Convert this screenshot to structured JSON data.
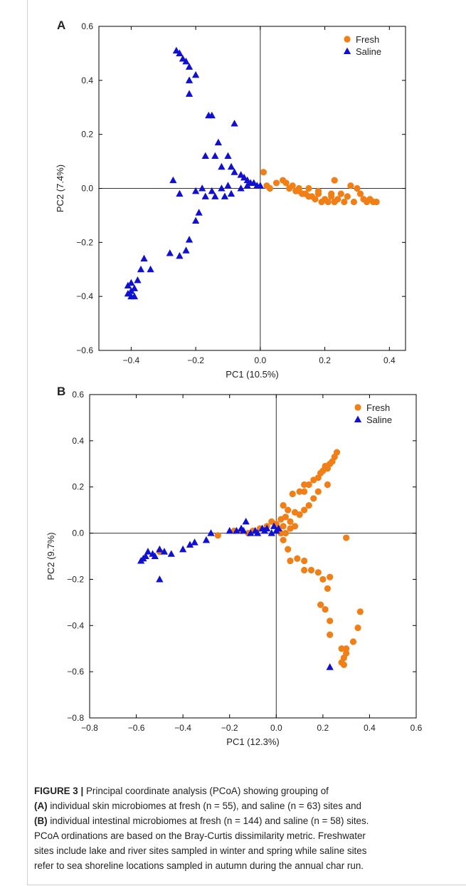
{
  "chart_data": [
    {
      "type": "scatter",
      "panel": "A",
      "xlabel": "PC1 (10.5%)",
      "ylabel": "PC2 (7.4%)",
      "xlim": [
        -0.5,
        0.45
      ],
      "ylim": [
        -0.6,
        0.6
      ],
      "xticks": [
        -0.4,
        -0.2,
        0.0,
        0.2,
        0.4
      ],
      "xtick_labels": [
        "−0.4",
        "−0.2",
        "0.0",
        "0.2",
        "0.4"
      ],
      "yticks": [
        -0.6,
        -0.4,
        -0.2,
        0.0,
        0.2,
        0.4,
        0.6
      ],
      "ytick_labels": [
        "−0.6",
        "−0.4",
        "−0.2",
        "0.0",
        "0.2",
        "0.4",
        "0.6"
      ],
      "legend_position": "top-right",
      "series": [
        {
          "name": "Fresh",
          "marker": "circle",
          "color": "#f07f17",
          "points": [
            [
              0.01,
              0.06
            ],
            [
              0.02,
              0.01
            ],
            [
              0.03,
              0.0
            ],
            [
              0.05,
              0.02
            ],
            [
              0.07,
              0.03
            ],
            [
              0.08,
              0.02
            ],
            [
              0.09,
              0.0
            ],
            [
              0.1,
              0.01
            ],
            [
              0.11,
              -0.01
            ],
            [
              0.12,
              0.0
            ],
            [
              0.13,
              -0.02
            ],
            [
              0.14,
              -0.02
            ],
            [
              0.15,
              0.0
            ],
            [
              0.16,
              -0.03
            ],
            [
              0.17,
              -0.04
            ],
            [
              0.18,
              -0.02
            ],
            [
              0.19,
              -0.05
            ],
            [
              0.2,
              -0.04
            ],
            [
              0.21,
              -0.05
            ],
            [
              0.22,
              -0.02
            ],
            [
              0.23,
              0.03
            ],
            [
              0.23,
              -0.05
            ],
            [
              0.24,
              -0.04
            ],
            [
              0.25,
              -0.02
            ],
            [
              0.26,
              -0.05
            ],
            [
              0.27,
              -0.03
            ],
            [
              0.28,
              0.01
            ],
            [
              0.29,
              -0.05
            ],
            [
              0.3,
              0.0
            ],
            [
              0.31,
              -0.02
            ],
            [
              0.32,
              -0.04
            ],
            [
              0.33,
              -0.05
            ],
            [
              0.34,
              -0.04
            ],
            [
              0.35,
              -0.05
            ],
            [
              0.36,
              -0.05
            ],
            [
              0.22,
              -0.03
            ],
            [
              0.18,
              -0.01
            ],
            [
              0.15,
              -0.03
            ],
            [
              0.12,
              -0.01
            ]
          ]
        },
        {
          "name": "Saline",
          "marker": "triangle",
          "color": "#1010d0",
          "points": [
            [
              -0.26,
              0.51
            ],
            [
              -0.25,
              0.5
            ],
            [
              -0.24,
              0.48
            ],
            [
              -0.23,
              0.47
            ],
            [
              -0.22,
              0.45
            ],
            [
              -0.2,
              0.42
            ],
            [
              -0.22,
              0.4
            ],
            [
              -0.22,
              0.35
            ],
            [
              -0.16,
              0.27
            ],
            [
              -0.15,
              0.27
            ],
            [
              -0.08,
              0.24
            ],
            [
              -0.13,
              0.17
            ],
            [
              -0.17,
              0.12
            ],
            [
              -0.14,
              0.12
            ],
            [
              -0.1,
              0.12
            ],
            [
              -0.12,
              0.08
            ],
            [
              -0.09,
              0.08
            ],
            [
              -0.08,
              0.06
            ],
            [
              -0.06,
              0.05
            ],
            [
              -0.05,
              0.04
            ],
            [
              -0.04,
              0.03
            ],
            [
              -0.03,
              0.02
            ],
            [
              -0.02,
              0.02
            ],
            [
              -0.01,
              0.01
            ],
            [
              0.0,
              0.01
            ],
            [
              -0.04,
              0.01
            ],
            [
              -0.06,
              0.0
            ],
            [
              -0.1,
              0.01
            ],
            [
              -0.12,
              0.0
            ],
            [
              -0.15,
              -0.01
            ],
            [
              -0.18,
              0.0
            ],
            [
              -0.2,
              -0.01
            ],
            [
              -0.17,
              -0.03
            ],
            [
              -0.25,
              -0.02
            ],
            [
              -0.27,
              0.03
            ],
            [
              -0.14,
              -0.03
            ],
            [
              -0.11,
              -0.03
            ],
            [
              -0.09,
              -0.02
            ],
            [
              -0.19,
              -0.09
            ],
            [
              -0.2,
              -0.12
            ],
            [
              -0.22,
              -0.19
            ],
            [
              -0.23,
              -0.23
            ],
            [
              -0.25,
              -0.25
            ],
            [
              -0.28,
              -0.24
            ],
            [
              -0.34,
              -0.3
            ],
            [
              -0.36,
              -0.26
            ],
            [
              -0.37,
              -0.3
            ],
            [
              -0.38,
              -0.34
            ],
            [
              -0.39,
              -0.37
            ],
            [
              -0.4,
              -0.35
            ],
            [
              -0.41,
              -0.36
            ],
            [
              -0.4,
              -0.38
            ],
            [
              -0.41,
              -0.39
            ],
            [
              -0.39,
              -0.4
            ],
            [
              -0.4,
              -0.4
            ]
          ]
        }
      ]
    },
    {
      "type": "scatter",
      "panel": "B",
      "xlabel": "PC1 (12.3%)",
      "ylabel": "PC2 (9.7%)",
      "xlim": [
        -0.8,
        0.6
      ],
      "ylim": [
        -0.8,
        0.6
      ],
      "xticks": [
        -0.8,
        -0.6,
        -0.4,
        -0.2,
        0.0,
        0.2,
        0.4,
        0.6
      ],
      "xtick_labels": [
        "−0.8",
        "−0.6",
        "−0.4",
        "−0.2",
        "0.0",
        "0.2",
        "0.4",
        "0.6"
      ],
      "yticks": [
        -0.8,
        -0.6,
        -0.4,
        -0.2,
        0.0,
        0.2,
        0.4,
        0.6
      ],
      "ytick_labels": [
        "−0.8",
        "−0.6",
        "−0.4",
        "−0.2",
        "0.0",
        "0.2",
        "0.4",
        "0.6"
      ],
      "legend_position": "top-right",
      "series": [
        {
          "name": "Fresh",
          "marker": "circle",
          "color": "#f07f17",
          "points": [
            [
              0.26,
              0.35
            ],
            [
              0.25,
              0.33
            ],
            [
              0.24,
              0.31
            ],
            [
              0.23,
              0.3
            ],
            [
              0.22,
              0.28
            ],
            [
              0.21,
              0.29
            ],
            [
              0.2,
              0.27
            ],
            [
              0.19,
              0.26
            ],
            [
              0.18,
              0.24
            ],
            [
              0.16,
              0.23
            ],
            [
              0.14,
              0.21
            ],
            [
              0.12,
              0.21
            ],
            [
              0.12,
              0.18
            ],
            [
              0.1,
              0.18
            ],
            [
              0.07,
              0.17
            ],
            [
              0.22,
              0.21
            ],
            [
              0.18,
              0.18
            ],
            [
              0.16,
              0.15
            ],
            [
              0.14,
              0.12
            ],
            [
              0.12,
              0.1
            ],
            [
              0.1,
              0.08
            ],
            [
              0.08,
              0.09
            ],
            [
              0.05,
              0.1
            ],
            [
              0.03,
              0.12
            ],
            [
              0.02,
              0.06
            ],
            [
              0.04,
              0.07
            ],
            [
              0.06,
              0.05
            ],
            [
              0.03,
              0.03
            ],
            [
              0.01,
              0.02
            ],
            [
              0.02,
              0.0
            ],
            [
              0.04,
              0.0
            ],
            [
              0.06,
              0.02
            ],
            [
              0.08,
              0.03
            ],
            [
              0.0,
              0.04
            ],
            [
              -0.02,
              0.05
            ],
            [
              -0.04,
              0.03
            ],
            [
              -0.07,
              0.02
            ],
            [
              -0.1,
              0.01
            ],
            [
              -0.12,
              0.0
            ],
            [
              -0.15,
              0.01
            ],
            [
              -0.18,
              0.01
            ],
            [
              -0.25,
              -0.01
            ],
            [
              -0.5,
              -0.08
            ],
            [
              0.03,
              -0.03
            ],
            [
              0.05,
              -0.07
            ],
            [
              0.06,
              -0.12
            ],
            [
              0.09,
              -0.11
            ],
            [
              0.12,
              -0.12
            ],
            [
              0.12,
              -0.16
            ],
            [
              0.15,
              -0.16
            ],
            [
              0.18,
              -0.17
            ],
            [
              0.2,
              -0.2
            ],
            [
              0.23,
              -0.19
            ],
            [
              0.22,
              -0.24
            ],
            [
              0.19,
              -0.31
            ],
            [
              0.21,
              -0.33
            ],
            [
              0.23,
              -0.38
            ],
            [
              0.23,
              -0.44
            ],
            [
              0.28,
              -0.5
            ],
            [
              0.3,
              -0.52
            ],
            [
              0.29,
              -0.54
            ],
            [
              0.28,
              -0.56
            ],
            [
              0.29,
              -0.57
            ],
            [
              0.3,
              -0.5
            ],
            [
              0.33,
              -0.47
            ],
            [
              0.35,
              -0.41
            ],
            [
              0.36,
              -0.34
            ],
            [
              0.3,
              -0.02
            ]
          ]
        },
        {
          "name": "Saline",
          "marker": "triangle",
          "color": "#1010d0",
          "points": [
            [
              -0.58,
              -0.12
            ],
            [
              -0.57,
              -0.11
            ],
            [
              -0.56,
              -0.1
            ],
            [
              -0.55,
              -0.08
            ],
            [
              -0.53,
              -0.09
            ],
            [
              -0.52,
              -0.1
            ],
            [
              -0.5,
              -0.07
            ],
            [
              -0.48,
              -0.08
            ],
            [
              -0.45,
              -0.09
            ],
            [
              -0.5,
              -0.2
            ],
            [
              -0.4,
              -0.07
            ],
            [
              -0.37,
              -0.05
            ],
            [
              -0.35,
              -0.04
            ],
            [
              -0.3,
              -0.03
            ],
            [
              -0.28,
              0.0
            ],
            [
              -0.2,
              0.01
            ],
            [
              -0.17,
              0.01
            ],
            [
              -0.15,
              0.02
            ],
            [
              -0.14,
              0.01
            ],
            [
              -0.13,
              0.05
            ],
            [
              -0.11,
              0.0
            ],
            [
              -0.09,
              0.01
            ],
            [
              -0.08,
              0.0
            ],
            [
              -0.06,
              0.02
            ],
            [
              -0.05,
              0.01
            ],
            [
              -0.04,
              0.02
            ],
            [
              -0.02,
              0.0
            ],
            [
              -0.01,
              0.03
            ],
            [
              0.0,
              0.01
            ],
            [
              0.01,
              0.02
            ],
            [
              0.23,
              -0.58
            ]
          ]
        }
      ]
    }
  ],
  "caption": {
    "label": "FIGURE 3 |",
    "line1": "Principal coordinate analysis (PCoA) showing grouping of",
    "line2_bold": "(A)",
    "line2": "individual skin microbiomes at fresh (n = 55), and saline (n = 63) sites and",
    "line3_bold": "(B)",
    "line3": "individual intestinal microbiomes at fresh (n = 144) and saline (n = 58) sites.",
    "line4": "PCoA ordinations are based on the Bray-Curtis dissimilarity metric. Freshwater",
    "line5": "sites include lake and river sites sampled in winter and spring while saline sites",
    "line6": "refer to sea shoreline locations sampled in autumn during the annual char run."
  },
  "colors": {
    "fresh": "#f07f17",
    "saline": "#1010d0"
  }
}
